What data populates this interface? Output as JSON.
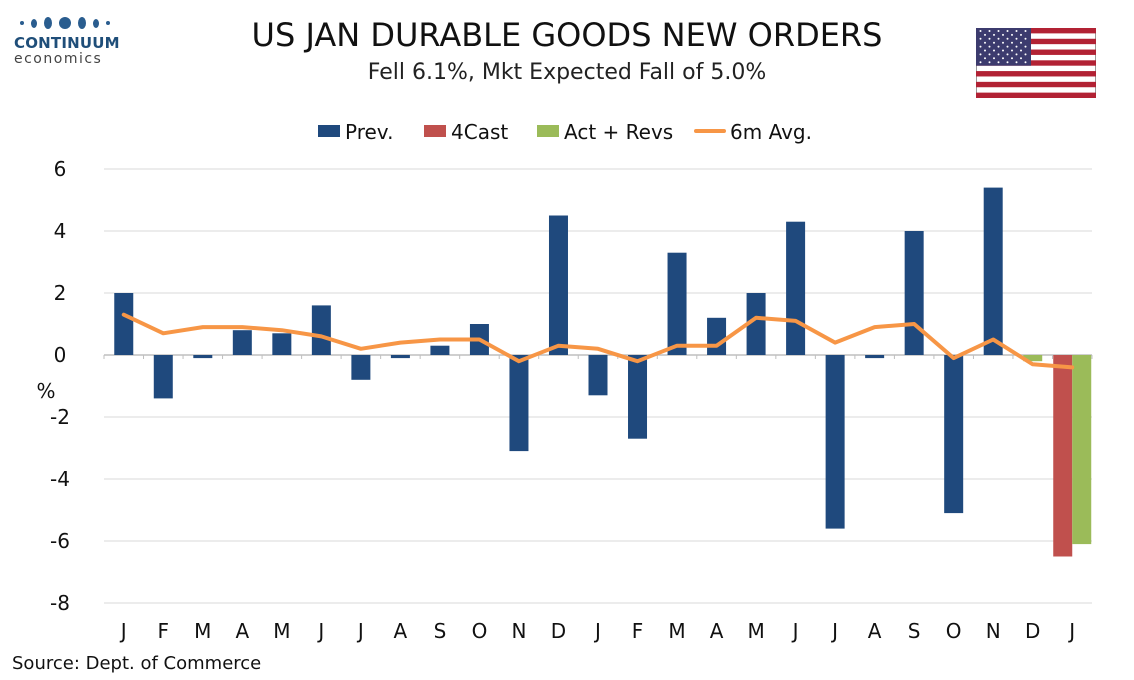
{
  "brand": {
    "name": "CONTINUUM",
    "tagline": "economics"
  },
  "chart_data": {
    "type": "bar",
    "title": "US JAN DURABLE GOODS NEW ORDERS",
    "subtitle": "Fell 6.1%, Mkt Expected Fall of 5.0%",
    "ylabel": "%",
    "ylim": [
      -8,
      6
    ],
    "yticks": [
      6,
      4,
      2,
      0,
      -2,
      -4,
      -6,
      -8
    ],
    "categories": [
      "J",
      "F",
      "M",
      "A",
      "M",
      "J",
      "J",
      "A",
      "S",
      "O",
      "N",
      "D",
      "J",
      "F",
      "M",
      "A",
      "M",
      "J",
      "J",
      "A",
      "S",
      "O",
      "N",
      "D",
      "J"
    ],
    "series": [
      {
        "name": "Prev.",
        "type": "bar",
        "color": "#1f497d",
        "values": [
          2.0,
          -1.4,
          -0.1,
          0.8,
          0.7,
          1.6,
          -0.8,
          -0.1,
          0.3,
          1.0,
          -3.1,
          4.5,
          -1.3,
          -2.7,
          3.3,
          1.2,
          2.0,
          4.3,
          -5.6,
          -0.1,
          4.0,
          -5.1,
          5.4,
          null,
          null
        ]
      },
      {
        "name": "4Cast",
        "type": "bar",
        "color": "#c0504d",
        "values": [
          null,
          null,
          null,
          null,
          null,
          null,
          null,
          null,
          null,
          null,
          null,
          null,
          null,
          null,
          null,
          null,
          null,
          null,
          null,
          null,
          null,
          null,
          null,
          null,
          -6.5
        ]
      },
      {
        "name": "Act + Revs",
        "type": "bar",
        "color": "#9bbb59",
        "values": [
          null,
          null,
          null,
          null,
          null,
          null,
          null,
          null,
          null,
          null,
          null,
          null,
          null,
          null,
          null,
          null,
          null,
          null,
          null,
          null,
          null,
          null,
          null,
          -0.2,
          -6.1
        ]
      },
      {
        "name": "6m Avg.",
        "type": "line",
        "color": "#f79646",
        "values": [
          1.3,
          0.7,
          0.9,
          0.9,
          0.8,
          0.6,
          0.2,
          0.4,
          0.5,
          0.5,
          -0.2,
          0.3,
          0.2,
          -0.2,
          0.3,
          0.3,
          1.2,
          1.1,
          0.4,
          0.9,
          1.0,
          -0.1,
          0.5,
          -0.3,
          -0.4
        ]
      }
    ],
    "legend_position": "top",
    "grid": true
  },
  "source": "Source: Dept. of Commerce",
  "colors": {
    "flag_red": "#b22234",
    "flag_blue": "#3c3b6e",
    "grid": "#d9d9d9"
  }
}
